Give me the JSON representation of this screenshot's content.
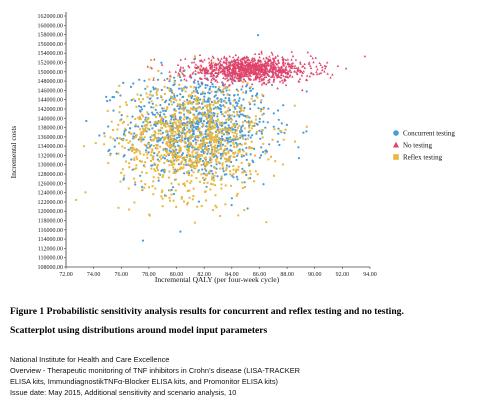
{
  "caption": {
    "figure_title": "Figure 1 Probabilistic sensitivity analysis results for concurrent and reflex testing and no testing.",
    "subtitle": "Scatterplot using distributions around model input parameters"
  },
  "footer": {
    "line1": "National Institute for Health and Care Excellence",
    "line2": "Overview - Therapeutic monitoring of TNF inhibitors in Crohn’s disease (LISA-TRACKER",
    "line3": "ELISA kits, ImmundiagnostikTNFα-Blocker ELISA kits, and Promonitor ELISA kits)",
    "line4": "Issue date: May 2015, Additional sensitivity and scenario analysis, 10"
  },
  "chart_data": {
    "type": "scatter",
    "xlabel": "Incremental QALY (per four-week cycle)",
    "ylabel": "Incremental costs",
    "xlim": [
      72,
      94
    ],
    "ylim": [
      108000,
      162000
    ],
    "x_ticks": [
      "72.00",
      "74.00",
      "76.00",
      "78.00",
      "80.00",
      "82.00",
      "84.00",
      "86.00",
      "88.00",
      "90.00",
      "92.00",
      "94.00"
    ],
    "y_ticks": [
      "108000.00",
      "110000.00",
      "112000.00",
      "114000.00",
      "116000.00",
      "118000.00",
      "120000.00",
      "122000.00",
      "124000.00",
      "126000.00",
      "128000.00",
      "130000.00",
      "132000.00",
      "134000.00",
      "136000.00",
      "138000.00",
      "140000.00",
      "142000.00",
      "144000.00",
      "146000.00",
      "148000.00",
      "150000.00",
      "152000.00",
      "154000.00",
      "156000.00",
      "158000.00",
      "160000.00",
      "162000.00"
    ],
    "grid": false,
    "legend_position": "right",
    "series": [
      {
        "name": "Concurrent testing",
        "marker": "circle",
        "color": "#4a9bd8",
        "n_points": 1000,
        "mean": [
          81.6,
          138000
        ],
        "sd": [
          2.6,
          5800
        ]
      },
      {
        "name": "No testing",
        "marker": "triangle",
        "color": "#e0426a",
        "n_points": 1000,
        "mean": [
          85.3,
          150500
        ],
        "sd": [
          2.3,
          1300
        ]
      },
      {
        "name": "Reflex testing",
        "marker": "square",
        "color": "#e9b73c",
        "n_points": 1000,
        "mean": [
          81.1,
          135500
        ],
        "sd": [
          2.6,
          6200
        ]
      }
    ]
  }
}
